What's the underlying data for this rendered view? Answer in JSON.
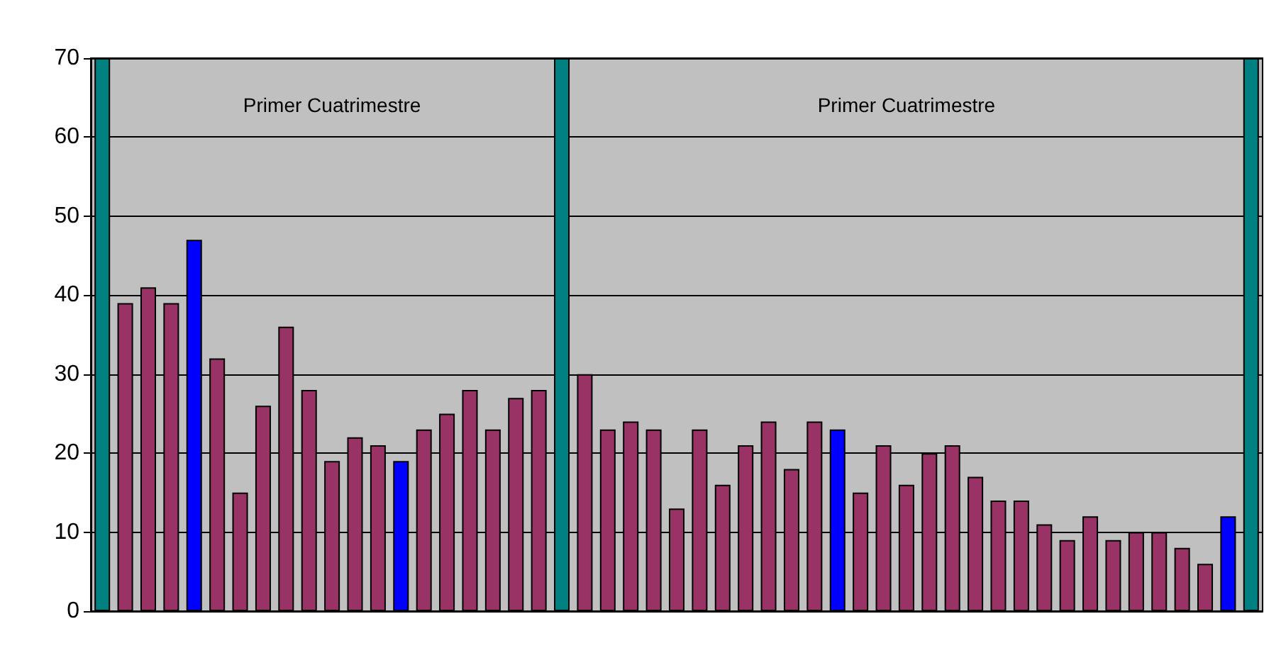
{
  "chart_data": {
    "type": "bar",
    "categories": [
      null,
      null,
      null,
      null,
      null,
      null,
      null,
      null,
      null,
      null,
      null,
      null,
      null,
      null,
      null,
      null,
      null,
      null,
      null,
      null,
      null,
      null,
      null,
      null,
      null,
      null,
      null,
      null,
      null,
      null,
      null,
      null,
      null,
      null,
      null,
      null,
      null,
      null,
      null,
      null,
      null,
      null,
      null,
      null,
      null,
      null,
      null,
      null,
      null,
      null,
      null
    ],
    "values": [
      70,
      39,
      41,
      39,
      47,
      32,
      15,
      26,
      36,
      28,
      19,
      22,
      21,
      19,
      23,
      25,
      28,
      23,
      27,
      28,
      70,
      30,
      23,
      24,
      23,
      13,
      23,
      16,
      21,
      24,
      18,
      24,
      23,
      15,
      21,
      16,
      20,
      21,
      17,
      14,
      14,
      11,
      9,
      12,
      9,
      10,
      10,
      8,
      6,
      12,
      70
    ],
    "colors": [
      "#008080",
      "#993366",
      "#993366",
      "#993366",
      "#0000ff",
      "#993366",
      "#993366",
      "#993366",
      "#993366",
      "#993366",
      "#993366",
      "#993366",
      "#993366",
      "#0000ff",
      "#993366",
      "#993366",
      "#993366",
      "#993366",
      "#993366",
      "#993366",
      "#008080",
      "#993366",
      "#993366",
      "#993366",
      "#993366",
      "#993366",
      "#993366",
      "#993366",
      "#993366",
      "#993366",
      "#993366",
      "#993366",
      "#0000ff",
      "#993366",
      "#993366",
      "#993366",
      "#993366",
      "#993366",
      "#993366",
      "#993366",
      "#993366",
      "#993366",
      "#993366",
      "#993366",
      "#993366",
      "#993366",
      "#993366",
      "#993366",
      "#993366",
      "#0000ff",
      "#008080"
    ],
    "ylim": [
      0,
      70
    ],
    "yticks": [
      0,
      10,
      20,
      30,
      40,
      50,
      60,
      70
    ],
    "grid": "y",
    "annotations": [
      "Primer Cuatrimestre",
      "Primer Cuatrimestre"
    ]
  }
}
